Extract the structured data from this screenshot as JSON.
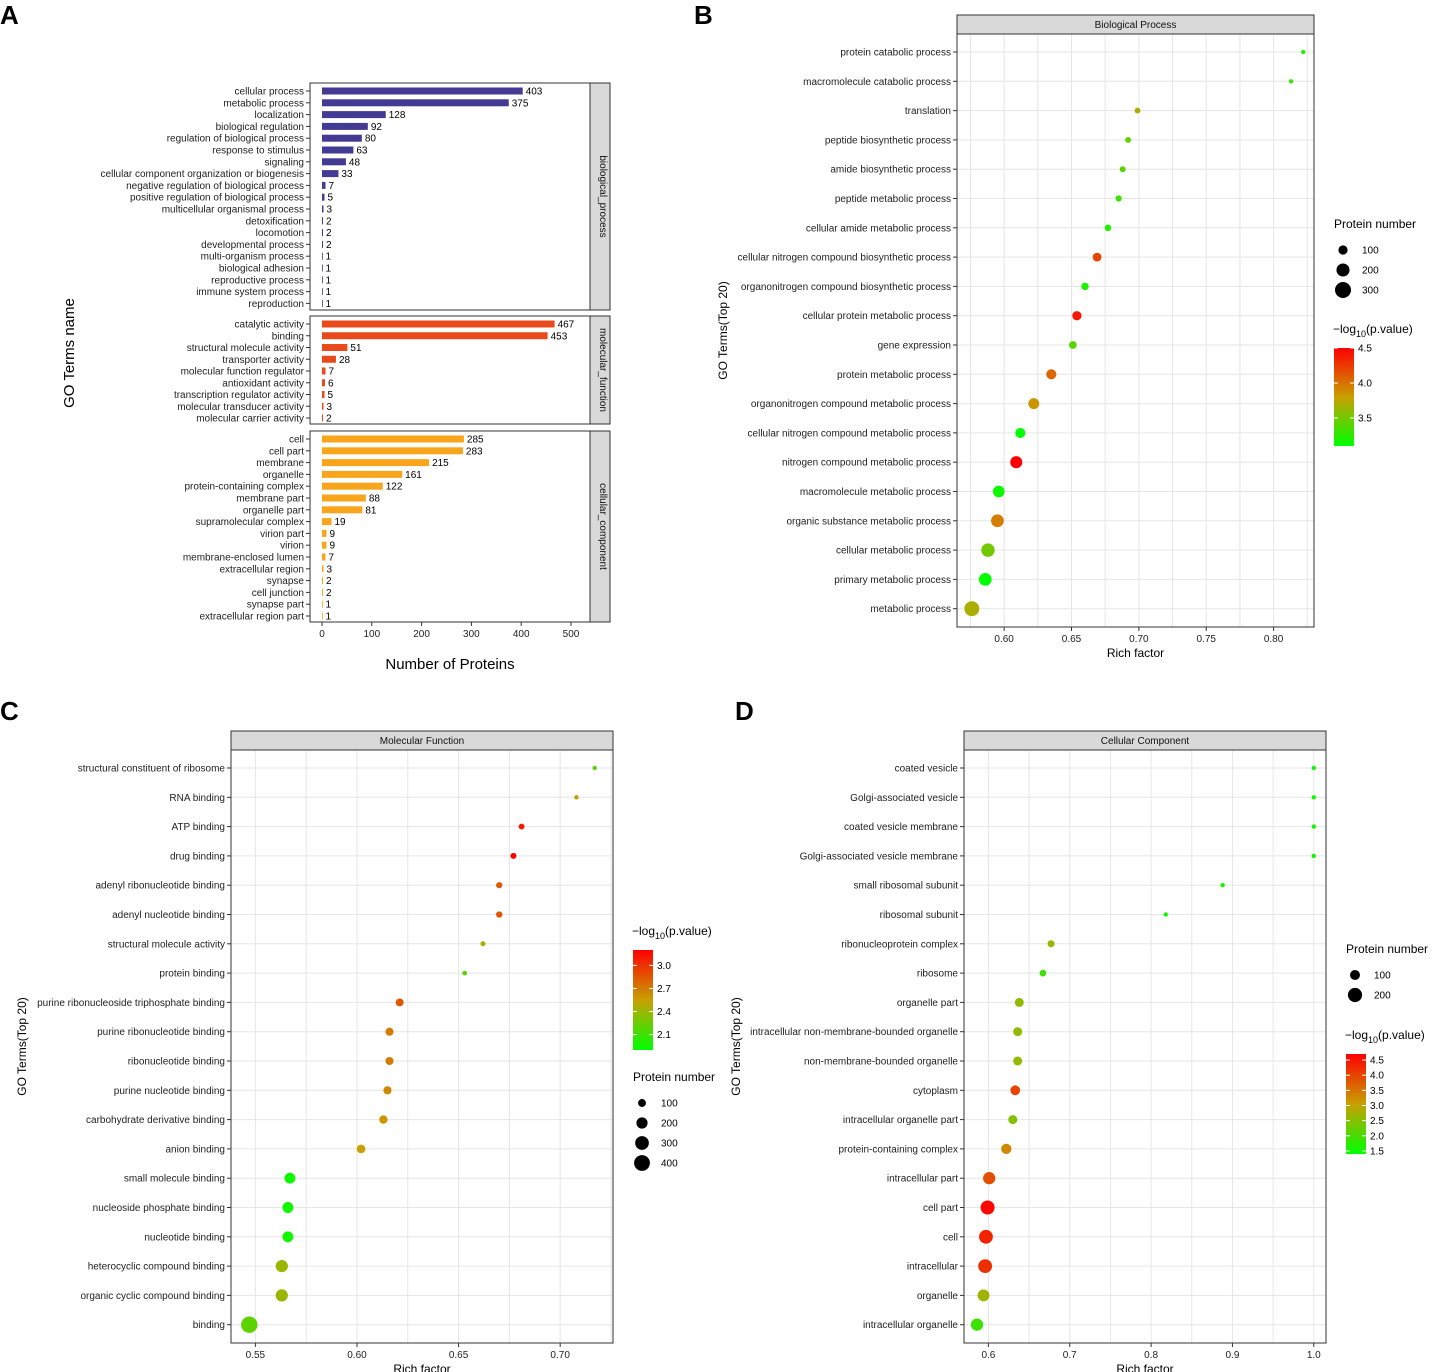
{
  "panels": {
    "A": "A",
    "B": "B",
    "C": "C",
    "D": "D"
  },
  "chart_data": [
    {
      "id": "A",
      "type": "bar",
      "orientation": "horizontal",
      "xlabel": "Number of Proteins",
      "ylabel": "GO Terms name",
      "xlim": [
        0,
        500
      ],
      "xticks": [
        0,
        100,
        200,
        300,
        400,
        500
      ],
      "facets": [
        {
          "strip": "biological_process",
          "color": "#433a93",
          "categories": [
            "cellular process",
            "metabolic process",
            "localization",
            "biological regulation",
            "regulation of biological process",
            "response to stimulus",
            "signaling",
            "cellular component organization or biogenesis",
            "negative regulation of biological process",
            "positive regulation of biological process",
            "multicellular organismal process",
            "detoxification",
            "locomotion",
            "developmental process",
            "multi-organism process",
            "biological adhesion",
            "reproductive process",
            "immune system process",
            "reproduction"
          ],
          "values": [
            403,
            375,
            128,
            92,
            80,
            63,
            48,
            33,
            7,
            5,
            3,
            2,
            2,
            2,
            1,
            1,
            1,
            1,
            1
          ]
        },
        {
          "strip": "molecular_function",
          "color": "#e84a1c",
          "categories": [
            "catalytic activity",
            "binding",
            "structural molecule activity",
            "transporter activity",
            "molecular function regulator",
            "antioxidant activity",
            "transcription regulator activity",
            "molecular transducer activity",
            "molecular carrier activity"
          ],
          "values": [
            467,
            453,
            51,
            28,
            7,
            6,
            5,
            3,
            2
          ]
        },
        {
          "strip": "cellular_component",
          "color": "#f9a51c",
          "categories": [
            "cell",
            "cell part",
            "membrane",
            "organelle",
            "protein-containing complex",
            "membrane part",
            "organelle part",
            "supramolecular complex",
            "virion part",
            "virion",
            "membrane-enclosed lumen",
            "extracellular region",
            "synapse",
            "cell junction",
            "synapse part",
            "extracellular region part"
          ],
          "values": [
            285,
            283,
            215,
            161,
            122,
            88,
            81,
            19,
            9,
            9,
            7,
            3,
            2,
            2,
            1,
            1
          ]
        }
      ]
    },
    {
      "id": "B",
      "type": "scatter",
      "title": "Biological Process",
      "xlabel": "Rich factor",
      "ylabel": "GO Terms(Top 20)",
      "xlim": [
        0.565,
        0.83
      ],
      "xticks": [
        "0.60",
        "0.65",
        "0.70",
        "0.75",
        "0.80"
      ],
      "size_legend": {
        "title": "Protein number",
        "values": [
          100,
          200,
          300
        ]
      },
      "color_legend": {
        "title": "−log10(p.value)",
        "min": 3.1,
        "max": 4.5,
        "ticks": [
          "3.5",
          "4.0",
          "4.5"
        ],
        "low_color": "#00ff00",
        "mid_color": "#c8a000",
        "high_color": "#ff0000"
      },
      "terms": [
        "protein catabolic process",
        "macromolecule catabolic process",
        "translation",
        "peptide biosynthetic process",
        "amide biosynthetic process",
        "peptide metabolic process",
        "cellular amide metabolic process",
        "cellular nitrogen compound biosynthetic process",
        "organonitrogen compound biosynthetic process",
        "cellular protein metabolic process",
        "gene expression",
        "protein metabolic process",
        "organonitrogen compound metabolic process",
        "cellular nitrogen compound metabolic process",
        "nitrogen compound metabolic process",
        "macromolecule metabolic process",
        "organic substance metabolic process",
        "cellular metabolic process",
        "primary metabolic process",
        "metabolic process"
      ],
      "rich_factor": [
        0.822,
        0.813,
        0.699,
        0.692,
        0.688,
        0.685,
        0.677,
        0.669,
        0.66,
        0.654,
        0.651,
        0.635,
        0.622,
        0.612,
        0.609,
        0.596,
        0.595,
        0.588,
        0.586,
        0.576
      ],
      "protein_number": [
        20,
        22,
        40,
        40,
        42,
        45,
        50,
        90,
        65,
        100,
        70,
        120,
        140,
        120,
        170,
        160,
        190,
        210,
        190,
        260
      ],
      "neg_log10_p": [
        3.2,
        3.3,
        3.7,
        3.45,
        3.4,
        3.3,
        3.2,
        4.2,
        3.2,
        4.4,
        3.4,
        4.05,
        3.85,
        3.1,
        4.5,
        3.15,
        3.95,
        3.5,
        3.1,
        3.7
      ]
    },
    {
      "id": "C",
      "type": "scatter",
      "title": "Molecular Function",
      "xlabel": "Rich factor",
      "ylabel": "GO Terms(Top 20)",
      "xlim": [
        0.538,
        0.726
      ],
      "xticks": [
        "0.55",
        "0.60",
        "0.65",
        "0.70"
      ],
      "size_legend": {
        "title": "Protein number",
        "values": [
          100,
          200,
          300,
          400
        ]
      },
      "color_legend": {
        "title": "−log10(p.value)",
        "min": 1.9,
        "max": 3.2,
        "ticks": [
          "2.1",
          "2.4",
          "2.7",
          "3.0"
        ],
        "low_color": "#00ff00",
        "mid_color": "#c8a000",
        "high_color": "#ff0000"
      },
      "terms": [
        "structural constituent of ribosome",
        "RNA binding",
        "ATP binding",
        "drug binding",
        "adenyl ribonucleotide binding",
        "adenyl nucleotide binding",
        "structural molecule activity",
        "protein binding",
        "purine ribonucleoside triphosphate binding",
        "purine ribonucleotide binding",
        "ribonucleotide binding",
        "purine nucleotide binding",
        "carbohydrate derivative binding",
        "anion binding",
        "small molecule binding",
        "nucleoside phosphate binding",
        "nucleotide binding",
        "heterocyclic compound binding",
        "organic cyclic compound binding",
        "binding"
      ],
      "rich_factor": [
        0.717,
        0.708,
        0.681,
        0.677,
        0.67,
        0.67,
        0.662,
        0.653,
        0.621,
        0.616,
        0.616,
        0.615,
        0.613,
        0.602,
        0.567,
        0.566,
        0.566,
        0.563,
        0.563,
        0.547
      ],
      "protein_number": [
        30,
        32,
        55,
        58,
        62,
        64,
        40,
        35,
        100,
        105,
        105,
        108,
        112,
        120,
        190,
        190,
        190,
        240,
        240,
        430
      ],
      "neg_log10_p": [
        2.2,
        2.5,
        3.1,
        3.2,
        2.85,
        2.85,
        2.45,
        2.2,
        2.85,
        2.7,
        2.7,
        2.65,
        2.6,
        2.55,
        1.95,
        1.95,
        1.95,
        2.4,
        2.4,
        2.2
      ]
    },
    {
      "id": "D",
      "type": "scatter",
      "title": "Cellular Component",
      "xlabel": "Rich factor",
      "ylabel": "GO Terms(Top 20)",
      "xlim": [
        0.57,
        1.015
      ],
      "xticks": [
        "0.6",
        "0.7",
        "0.8",
        "0.9",
        "1.0"
      ],
      "size_legend": {
        "title": "Protein number",
        "values": [
          100,
          200
        ]
      },
      "color_legend": {
        "title": "−log10(p.value)",
        "min": 1.4,
        "max": 4.7,
        "ticks": [
          "1.5",
          "2.0",
          "2.5",
          "3.0",
          "3.5",
          "4.0",
          "4.5"
        ],
        "low_color": "#00ff00",
        "mid_color": "#c8a000",
        "high_color": "#ff0000"
      },
      "terms": [
        "coated vesicle",
        "Golgi-associated vesicle",
        "coated vesicle membrane",
        "Golgi-associated vesicle membrane",
        "small ribosomal subunit",
        "ribosomal subunit",
        "ribonucleoprotein complex",
        "ribosome",
        "organelle part",
        "intracellular non-membrane-bounded organelle",
        "non-membrane-bounded organelle",
        "cytoplasm",
        "intracellular organelle part",
        "protein-containing complex",
        "intracellular part",
        "cell part",
        "cell",
        "intracellular",
        "organelle",
        "intracellular organelle"
      ],
      "rich_factor": [
        1.0,
        1.0,
        1.0,
        1.0,
        0.888,
        0.818,
        0.677,
        0.667,
        0.638,
        0.636,
        0.636,
        0.633,
        0.63,
        0.622,
        0.601,
        0.599,
        0.597,
        0.596,
        0.594,
        0.586
      ],
      "protein_number": [
        5,
        5,
        5,
        5,
        10,
        14,
        50,
        45,
        80,
        80,
        80,
        95,
        80,
        105,
        150,
        195,
        190,
        190,
        140,
        150
      ],
      "neg_log10_p": [
        1.55,
        1.55,
        1.55,
        1.55,
        1.6,
        1.55,
        2.6,
        1.9,
        2.6,
        2.6,
        2.6,
        4.0,
        2.5,
        3.3,
        3.9,
        4.6,
        4.35,
        4.2,
        2.7,
        1.9
      ]
    }
  ]
}
